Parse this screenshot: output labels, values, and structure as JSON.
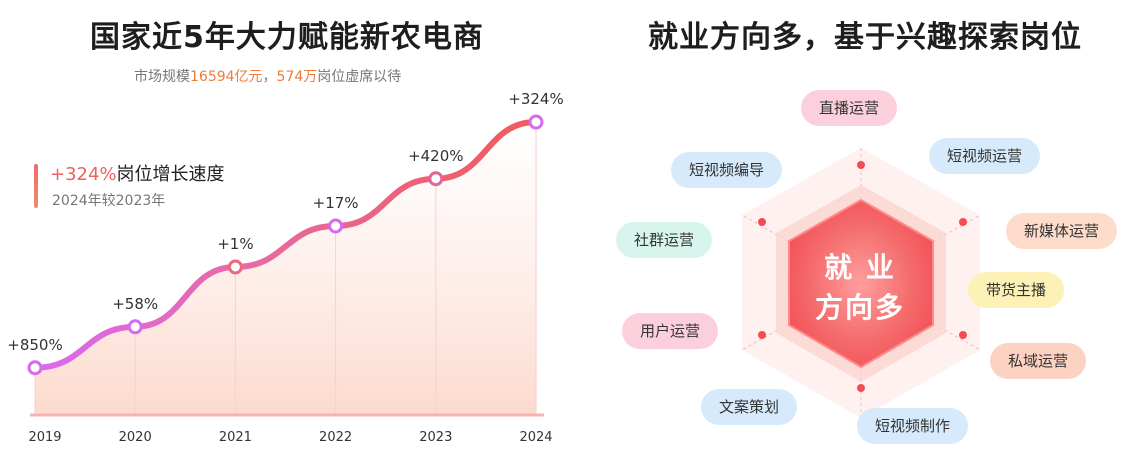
{
  "left": {
    "title": "国家近5年大力赋能新农电商",
    "subtitle": {
      "prefix": "市场规模",
      "market": "16594亿元",
      "sep": "，",
      "jobs": "574万",
      "suffix": "岗位虚席以待"
    },
    "legend": {
      "highlight": "+324%",
      "label": "岗位增长速度",
      "note": "2024年较2023年"
    }
  },
  "chart_data": {
    "type": "line",
    "categories": [
      "2019",
      "2020",
      "2021",
      "2022",
      "2023",
      "2024"
    ],
    "point_labels": [
      "+850%",
      "+58%",
      "+1%",
      "+17%",
      "+420%",
      "+324%"
    ],
    "values": [
      0.15,
      0.28,
      0.47,
      0.6,
      0.75,
      0.93
    ],
    "ylim": [
      0,
      1
    ],
    "colors": {
      "line_start": "#d86af0",
      "line_end": "#f05a5a",
      "point_fill": "#ffffff"
    }
  },
  "right": {
    "title": "就业方向多，基于兴趣探索岗位",
    "center": {
      "line1": "就 业",
      "line2": "方向多"
    },
    "tags": [
      {
        "label": "直播运营",
        "color": "pink"
      },
      {
        "label": "短视频运营",
        "color": "blue"
      },
      {
        "label": "新媒体运营",
        "color": "peach"
      },
      {
        "label": "带货主播",
        "color": "yellow"
      },
      {
        "label": "私域运营",
        "color": "salmon"
      },
      {
        "label": "短视频制作",
        "color": "blue"
      },
      {
        "label": "文案策划",
        "color": "blue"
      },
      {
        "label": "用户运营",
        "color": "pink"
      },
      {
        "label": "社群运营",
        "color": "mint"
      },
      {
        "label": "短视频编导",
        "color": "blue"
      }
    ]
  }
}
